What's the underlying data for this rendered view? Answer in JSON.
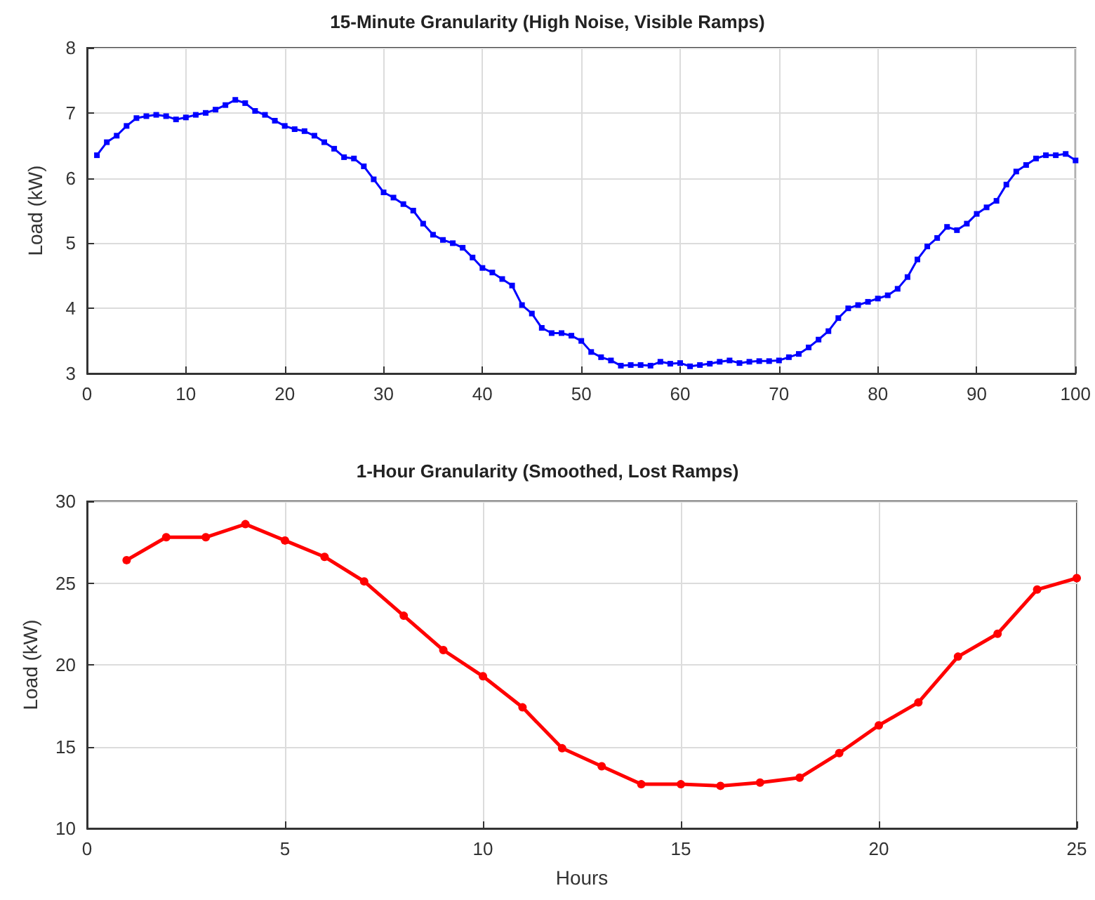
{
  "chart_data": [
    {
      "type": "line",
      "title": "15-Minute Granularity (High Noise, Visible Ramps)",
      "ylabel": "Load (kW)",
      "marker": "square",
      "grid": true,
      "x": [
        1,
        2,
        3,
        4,
        5,
        6,
        7,
        8,
        9,
        10,
        11,
        12,
        13,
        14,
        15,
        16,
        17,
        18,
        19,
        20,
        21,
        22,
        23,
        24,
        25,
        26,
        27,
        28,
        29,
        30,
        31,
        32,
        33,
        34,
        35,
        36,
        37,
        38,
        39,
        40,
        41,
        42,
        43,
        44,
        45,
        46,
        47,
        48,
        49,
        50,
        51,
        52,
        53,
        54,
        55,
        56,
        57,
        58,
        59,
        60,
        61,
        62,
        63,
        64,
        65,
        66,
        67,
        68,
        69,
        70,
        71,
        72,
        73,
        74,
        75,
        76,
        77,
        78,
        79,
        80,
        81,
        82,
        83,
        84,
        85,
        86,
        87,
        88,
        89,
        90,
        91,
        92,
        93,
        94,
        95,
        96,
        97,
        98,
        99,
        100
      ],
      "series": [
        {
          "color": "#0000ff",
          "values": [
            6.35,
            6.55,
            6.65,
            6.8,
            6.92,
            6.95,
            6.97,
            6.95,
            6.9,
            6.93,
            6.97,
            7.0,
            7.05,
            7.12,
            7.2,
            7.15,
            7.03,
            6.97,
            6.88,
            6.8,
            6.75,
            6.72,
            6.65,
            6.55,
            6.45,
            6.32,
            6.3,
            6.18,
            5.98,
            5.78,
            5.7,
            5.6,
            5.5,
            5.3,
            5.13,
            5.05,
            5.0,
            4.93,
            4.78,
            4.62,
            4.55,
            4.45,
            4.35,
            4.05,
            3.92,
            3.7,
            3.62,
            3.62,
            3.58,
            3.5,
            3.33,
            3.25,
            3.2,
            3.12,
            3.13,
            3.13,
            3.12,
            3.18,
            3.15,
            3.16,
            3.11,
            3.13,
            3.15,
            3.18,
            3.2,
            3.16,
            3.18,
            3.19,
            3.19,
            3.2,
            3.25,
            3.3,
            3.4,
            3.52,
            3.65,
            3.85,
            4.0,
            4.05,
            4.1,
            4.15,
            4.2,
            4.3,
            4.48,
            4.75,
            4.95,
            5.08,
            5.25,
            5.2,
            5.3,
            5.45,
            5.55,
            5.65,
            5.9,
            6.1,
            6.2,
            6.3,
            6.35,
            6.35,
            6.37,
            6.27
          ]
        }
      ],
      "xlim": [
        0,
        100
      ],
      "xticks": [
        0,
        10,
        20,
        30,
        40,
        50,
        60,
        70,
        80,
        90,
        100
      ],
      "ylim": [
        3,
        8
      ],
      "yticks": [
        3,
        4,
        5,
        6,
        7,
        8
      ]
    },
    {
      "type": "line",
      "title": "1-Hour Granularity (Smoothed, Lost Ramps)",
      "xlabel": "Hours",
      "ylabel": "Load (kW)",
      "marker": "circle",
      "grid": true,
      "x": [
        1,
        2,
        3,
        4,
        5,
        6,
        7,
        8,
        9,
        10,
        11,
        12,
        13,
        14,
        15,
        16,
        17,
        18,
        19,
        20,
        21,
        22,
        23,
        24,
        25
      ],
      "series": [
        {
          "color": "#ff0000",
          "values": [
            26.4,
            27.8,
            27.8,
            28.6,
            27.6,
            26.6,
            25.1,
            23.0,
            20.9,
            19.3,
            17.4,
            14.9,
            13.8,
            12.7,
            12.7,
            12.6,
            12.8,
            13.1,
            14.6,
            16.3,
            17.7,
            20.5,
            21.9,
            24.6,
            25.3
          ]
        }
      ],
      "xlim": [
        0,
        25
      ],
      "xticks": [
        0,
        5,
        10,
        15,
        20,
        25
      ],
      "ylim": [
        10,
        30
      ],
      "yticks": [
        10,
        15,
        20,
        25,
        30
      ]
    }
  ]
}
